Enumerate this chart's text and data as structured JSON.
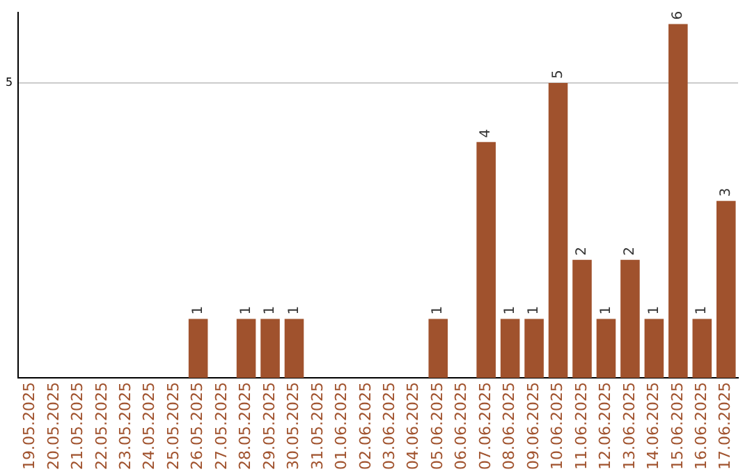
{
  "chart_data": {
    "type": "bar",
    "categories": [
      "19.05.2025",
      "20.05.2025",
      "21.05.2025",
      "22.05.2025",
      "23.05.2025",
      "24.05.2025",
      "25.05.2025",
      "26.05.2025",
      "27.05.2025",
      "28.05.2025",
      "29.05.2025",
      "30.05.2025",
      "31.05.2025",
      "01.06.2025",
      "02.06.2025",
      "03.06.2025",
      "04.06.2025",
      "05.06.2025",
      "06.06.2025",
      "07.06.2025",
      "08.06.2025",
      "09.06.2025",
      "10.06.2025",
      "11.06.2025",
      "12.06.2025",
      "13.06.2025",
      "14.06.2025",
      "15.06.2025",
      "16.06.2025",
      "17.06.2025"
    ],
    "values": [
      0,
      0,
      0,
      0,
      0,
      0,
      0,
      1,
      0,
      1,
      1,
      1,
      0,
      0,
      0,
      0,
      0,
      1,
      0,
      4,
      1,
      1,
      5,
      2,
      1,
      2,
      1,
      6,
      1,
      3
    ],
    "value_labels": [
      null,
      null,
      null,
      null,
      null,
      null,
      null,
      "1",
      null,
      "1",
      "1",
      "1",
      null,
      null,
      null,
      null,
      null,
      "1",
      null,
      "4",
      "1",
      "1",
      "5",
      "2",
      "1",
      "2",
      "1",
      "6",
      "1",
      "3"
    ],
    "color": "#a0522d",
    "ylim": [
      0,
      6.2
    ],
    "yticks": [
      5
    ],
    "grid": "y",
    "legend": false
  }
}
